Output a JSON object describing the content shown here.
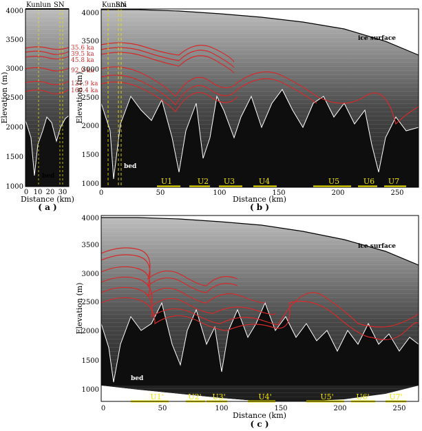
{
  "panel_a": {
    "tag": "( a )",
    "xlabel": "Distance (km)",
    "ylabel": "Elevation (m)",
    "xticks": [
      "0",
      "10",
      "20",
      "30"
    ],
    "yticks": [
      "1000",
      "1500",
      "2000",
      "2500",
      "3000",
      "3500",
      "4000"
    ],
    "top_labels": [
      "Kunlun",
      "SN"
    ],
    "bed_label": "bed",
    "ages": [
      "35.6 ka",
      "39.5 ka",
      "45.8 ka",
      "92.9 ka",
      "121.9 ka",
      "160.4 ka"
    ]
  },
  "panel_b": {
    "tag": "( b )",
    "xlabel": "Distance (km)",
    "ylabel": "Elevation (m)",
    "xticks": [
      "0",
      "50",
      "100",
      "150",
      "200",
      "250"
    ],
    "yticks": [
      "1000",
      "1500",
      "2000",
      "2500",
      "3000",
      "3500",
      "4000"
    ],
    "top_labels": [
      "Kunlun",
      "SN"
    ],
    "surface_label": "ice surface",
    "bed_label": "bed",
    "units": [
      "U1",
      "U2",
      "U3",
      "U4",
      "U5",
      "U6",
      "U7"
    ]
  },
  "panel_c": {
    "tag": "( c )",
    "xlabel": "Distance (km)",
    "ylabel": "Elevation (m)",
    "xticks": [
      "0",
      "50",
      "100",
      "150",
      "200",
      "250"
    ],
    "yticks": [
      "1000",
      "1500",
      "2000",
      "2500",
      "3000",
      "3500",
      "4000"
    ],
    "surface_label": "ice surface",
    "bed_label": "bed",
    "units": [
      "U1'",
      "U2'",
      "U3'",
      "U4'",
      "U5'",
      "U6'",
      "U7'"
    ]
  },
  "colors": {
    "layer_red": "#d42a2a",
    "unit_yellow": "#f2e600",
    "guide_yellow": "#e8e000",
    "bed_white": "#ffffff"
  }
}
